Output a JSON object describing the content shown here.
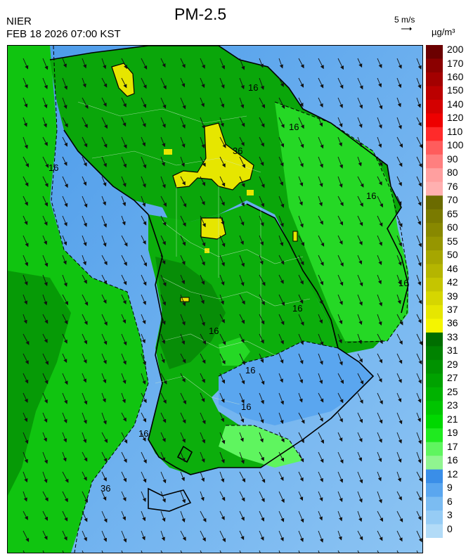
{
  "header": {
    "agency": "NIER",
    "timestamp": "FEB 18 2026 07:00 KST",
    "title": "PM-2.5",
    "wind_reference": "5 m/s",
    "unit": "µg/m³"
  },
  "legend": {
    "labels": [
      "200",
      "170",
      "160",
      "150",
      "140",
      "120",
      "110",
      "100",
      "90",
      "80",
      "76",
      "70",
      "65",
      "60",
      "55",
      "50",
      "46",
      "42",
      "39",
      "37",
      "36",
      "33",
      "31",
      "29",
      "27",
      "25",
      "23",
      "21",
      "19",
      "17",
      "16",
      "12",
      "9",
      "6",
      "3",
      "0"
    ],
    "colors": [
      "#6b0000",
      "#8b0000",
      "#a30000",
      "#bb0000",
      "#d40000",
      "#ee0000",
      "#ff2a2a",
      "#ff5c5c",
      "#ff7f7f",
      "#ff9f9f",
      "#ffb0b0",
      "#6b6b00",
      "#7a7a00",
      "#888800",
      "#969600",
      "#a6a600",
      "#b5b500",
      "#c5c500",
      "#d6d600",
      "#e6e600",
      "#f5f500",
      "#006e00",
      "#008200",
      "#009200",
      "#00a200",
      "#00b200",
      "#00c400",
      "#00d800",
      "#1fea1f",
      "#5ff55f",
      "#90f590",
      "#3a8ee8",
      "#5aa6ef",
      "#7bbcf2",
      "#96ccf5",
      "#b2dbf7"
    ]
  },
  "map": {
    "contour_labels": [
      "16",
      "16",
      "16",
      "16",
      "16",
      "16",
      "16",
      "16",
      "16",
      "16",
      "36",
      "36"
    ]
  }
}
